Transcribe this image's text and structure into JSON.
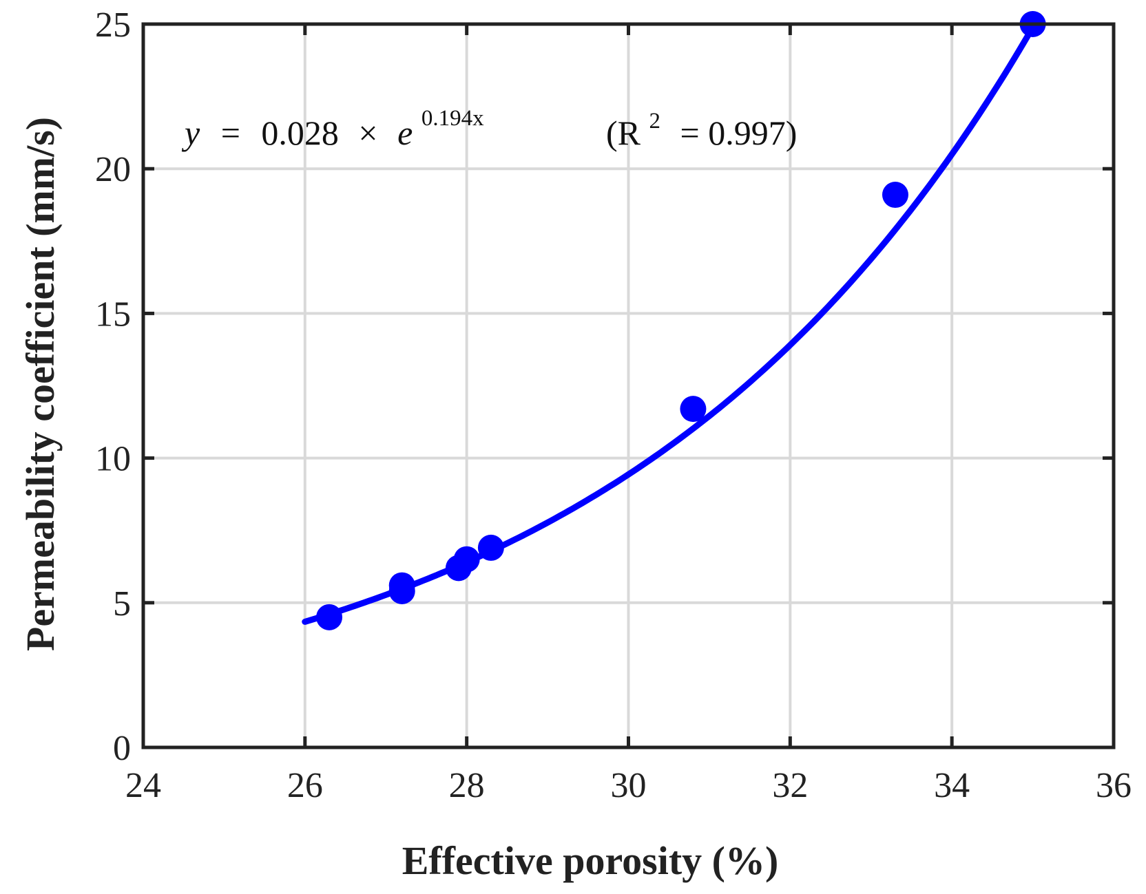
{
  "chart_data": {
    "type": "scatter",
    "xlabel": "Effective porosity (%)",
    "ylabel": "Permeability coefficient (mm/s)",
    "xlim": [
      24,
      36
    ],
    "ylim": [
      0,
      25
    ],
    "xticks": [
      24,
      26,
      28,
      30,
      32,
      34,
      36
    ],
    "yticks": [
      0,
      5,
      10,
      15,
      20,
      25
    ],
    "grid": true,
    "colors": {
      "series": "#0000ff",
      "grid": "#d9d9d9",
      "axes": "#222222"
    },
    "series": [
      {
        "kind": "points",
        "x": [
          26.3,
          27.2,
          27.2,
          27.9,
          28.0,
          28.3,
          30.8,
          33.3,
          35.0
        ],
        "y": [
          4.5,
          5.6,
          5.4,
          6.2,
          6.5,
          6.9,
          11.7,
          19.1,
          25.0
        ]
      },
      {
        "kind": "fit",
        "model": "exponential",
        "a": 0.028,
        "b": 0.194,
        "xrange": [
          26.0,
          35.0
        ]
      }
    ],
    "annotation": {
      "y_var": "y",
      "eq_sign": "=",
      "coef": "0.028",
      "times": "×",
      "base": "e",
      "exponent": "0.194x",
      "r2_open": "(R",
      "r2_sup": "2",
      "r2_rest": "= 0.997)"
    }
  }
}
